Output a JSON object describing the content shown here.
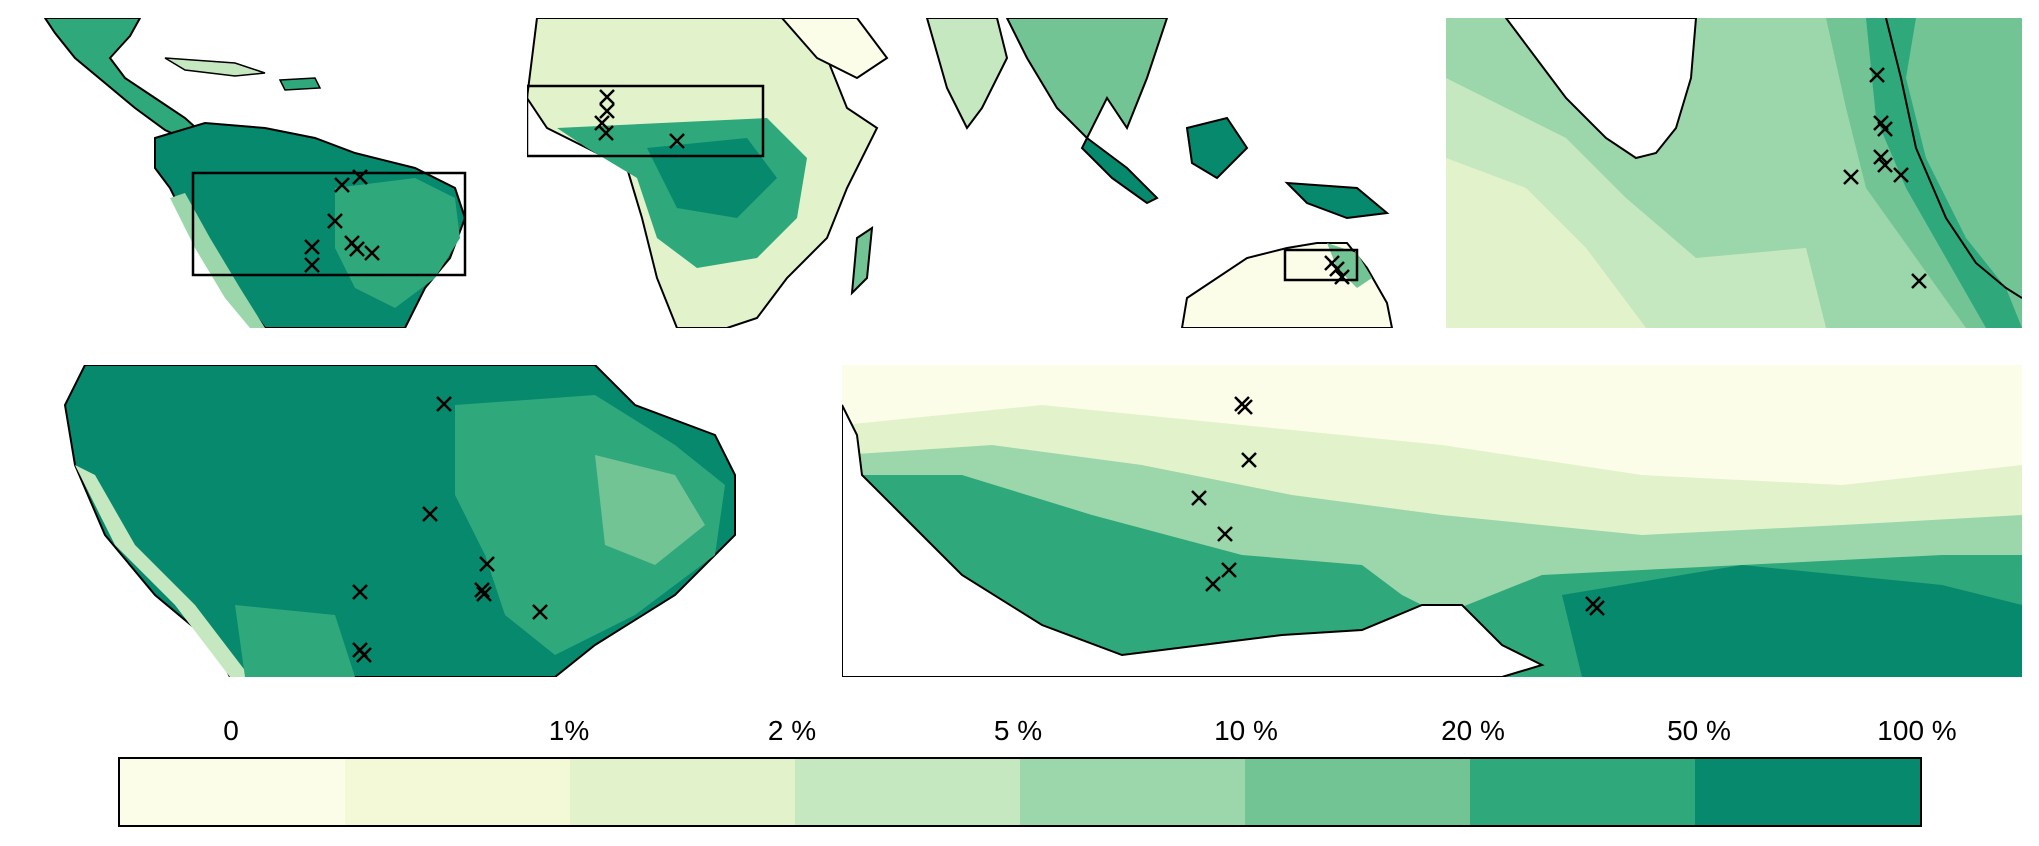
{
  "legend": {
    "labels": [
      "0",
      "1%",
      "2 %",
      "5 %",
      "10 %",
      "20 %",
      "50 %",
      "100 %"
    ],
    "colors": [
      "#fcfde8",
      "#f3f9d6",
      "#e2f3cc",
      "#c6e8c0",
      "#9cd7ab",
      "#73c494",
      "#2fa87c",
      "#06896c"
    ]
  },
  "map_colors": {
    "ocean": "#ffffff",
    "coast": "#000000"
  },
  "markers": {
    "symbol": "×"
  }
}
